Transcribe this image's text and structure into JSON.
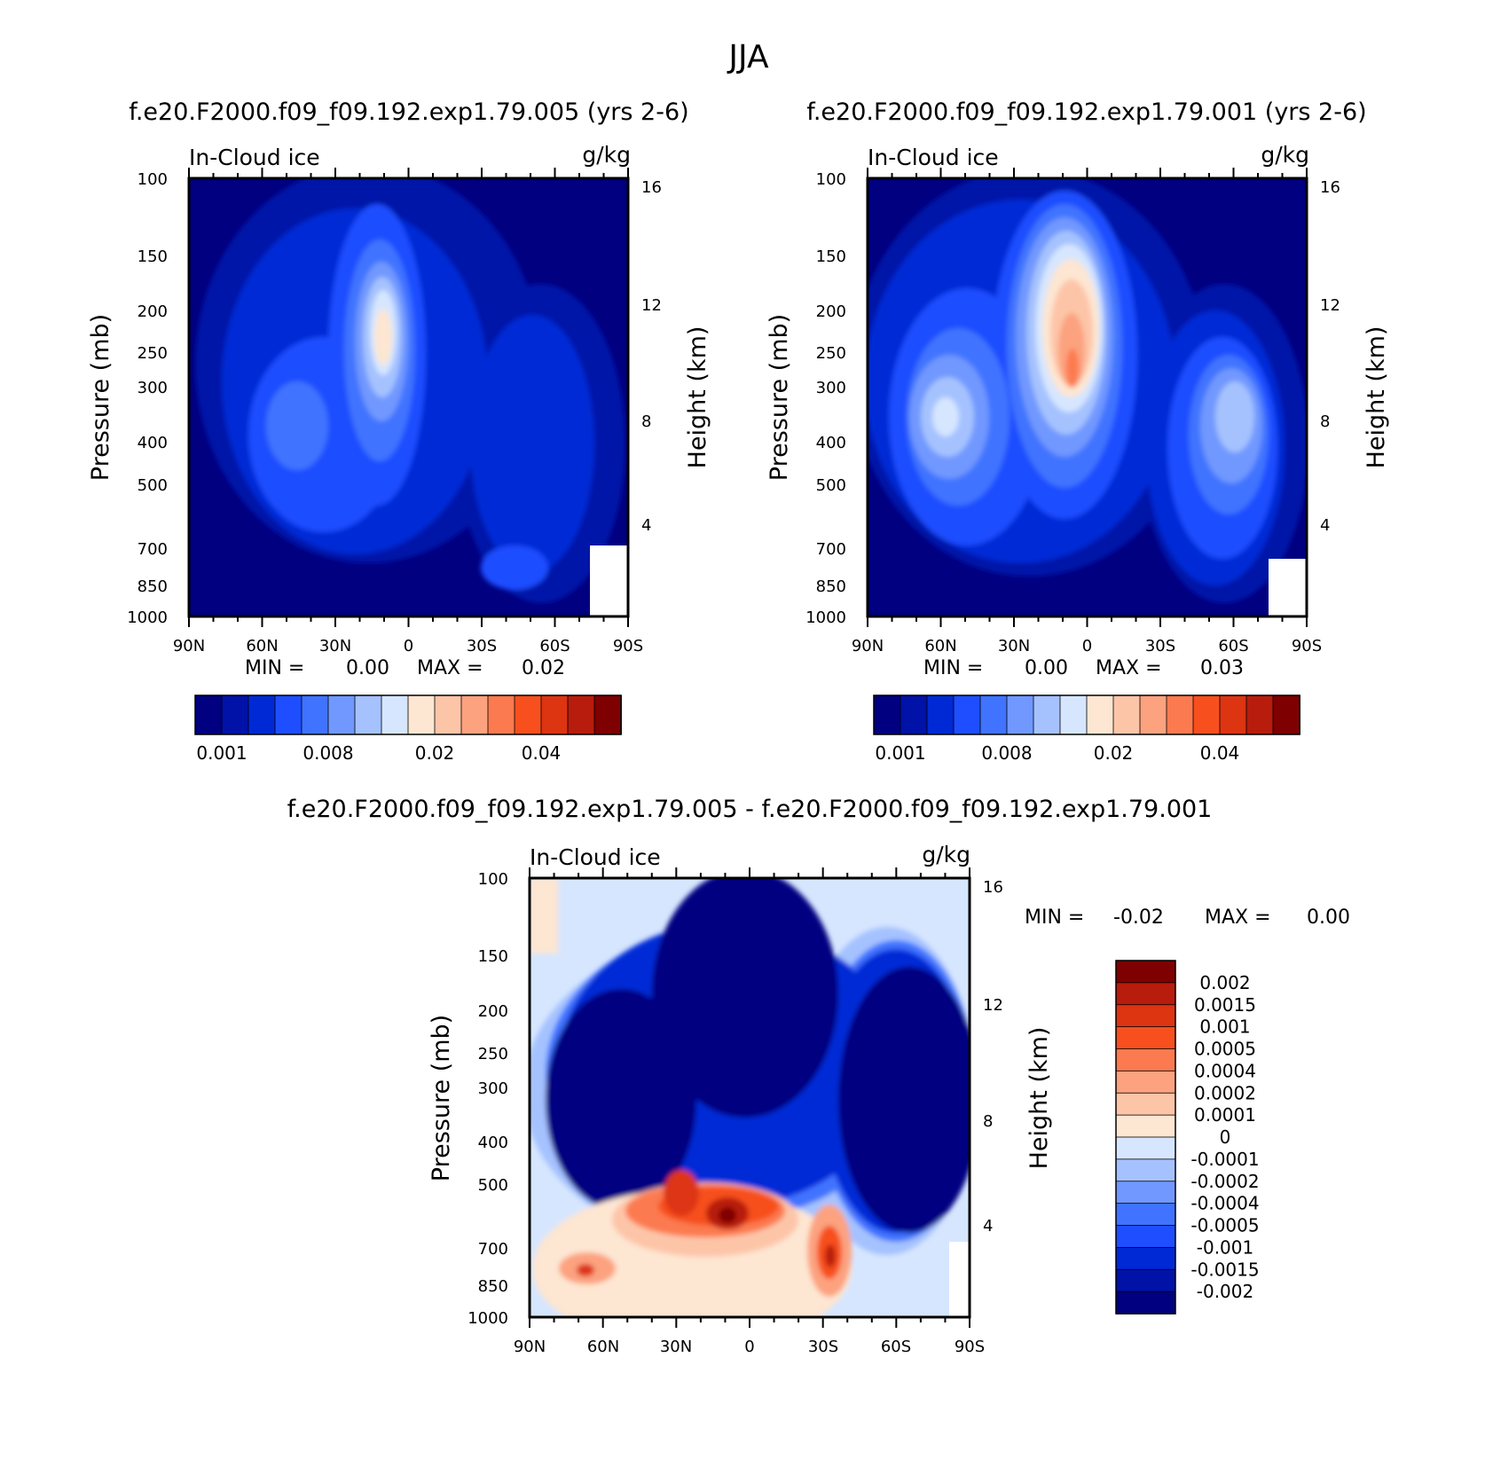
{
  "figure_title": "JJA",
  "colors": {
    "scale": [
      "#000080",
      "#0012a8",
      "#0029d6",
      "#1e4eff",
      "#4073ff",
      "#7198ff",
      "#a5c2ff",
      "#d6e6ff",
      "#fde6d2",
      "#fdc5a8",
      "#fca27f",
      "#fc7a4f",
      "#f7501e",
      "#dd3412",
      "#b81c0c",
      "#7f0000"
    ]
  },
  "chart_data": [
    {
      "type": "heatmap",
      "title": "f.e20.F2000.f09_f09.192.exp1.79.005 (yrs 2-6)",
      "variable": "In-Cloud ice",
      "units": "g/kg",
      "xlabel": "",
      "ylabel": "Pressure (mb)",
      "y2label": "Height (km)",
      "xticks": [
        "90N",
        "60N",
        "30N",
        "0",
        "30S",
        "60S",
        "90S"
      ],
      "yticks": [
        "100",
        "150",
        "200",
        "250",
        "300",
        "400",
        "500",
        "700",
        "850",
        "1000"
      ],
      "y2ticks": [
        "16",
        "12",
        "8",
        "4"
      ],
      "min_label": "MIN =",
      "min_value": "0.00",
      "max_label": "MAX =",
      "max_value": "0.02",
      "colorbar_labels": [
        "0.001",
        "0.008",
        "0.02",
        "0.04"
      ],
      "peak_value": 0.02
    },
    {
      "type": "heatmap",
      "title": "f.e20.F2000.f09_f09.192.exp1.79.001 (yrs 2-6)",
      "variable": "In-Cloud ice",
      "units": "g/kg",
      "xlabel": "",
      "ylabel": "Pressure (mb)",
      "y2label": "Height (km)",
      "xticks": [
        "90N",
        "60N",
        "30N",
        "0",
        "30S",
        "60S",
        "90S"
      ],
      "yticks": [
        "100",
        "150",
        "200",
        "250",
        "300",
        "400",
        "500",
        "700",
        "850",
        "1000"
      ],
      "y2ticks": [
        "16",
        "12",
        "8",
        "4"
      ],
      "min_label": "MIN =",
      "min_value": "0.00",
      "max_label": "MAX =",
      "max_value": "0.03",
      "colorbar_labels": [
        "0.001",
        "0.008",
        "0.02",
        "0.04"
      ],
      "peak_value": 0.03
    },
    {
      "type": "heatmap",
      "title": "f.e20.F2000.f09_f09.192.exp1.79.005 - f.e20.F2000.f09_f09.192.exp1.79.001",
      "variable": "In-Cloud ice",
      "units": "g/kg",
      "xlabel": "",
      "ylabel": "Pressure (mb)",
      "y2label": "Height (km)",
      "xticks": [
        "90N",
        "60N",
        "30N",
        "0",
        "30S",
        "60S",
        "90S"
      ],
      "yticks": [
        "100",
        "150",
        "200",
        "250",
        "300",
        "400",
        "500",
        "700",
        "850",
        "1000"
      ],
      "y2ticks": [
        "16",
        "12",
        "8",
        "4"
      ],
      "min_label": "MIN =",
      "min_value": "-0.02",
      "max_label": "MAX =",
      "max_value": "0.00",
      "colorbar_labels": [
        "0.002",
        "0.0015",
        "0.001",
        "0.0005",
        "0.0004",
        "0.0002",
        "0.0001",
        "0",
        "-0.0001",
        "-0.0002",
        "-0.0004",
        "-0.0005",
        "-0.001",
        "-0.0015",
        "-0.002"
      ]
    }
  ]
}
